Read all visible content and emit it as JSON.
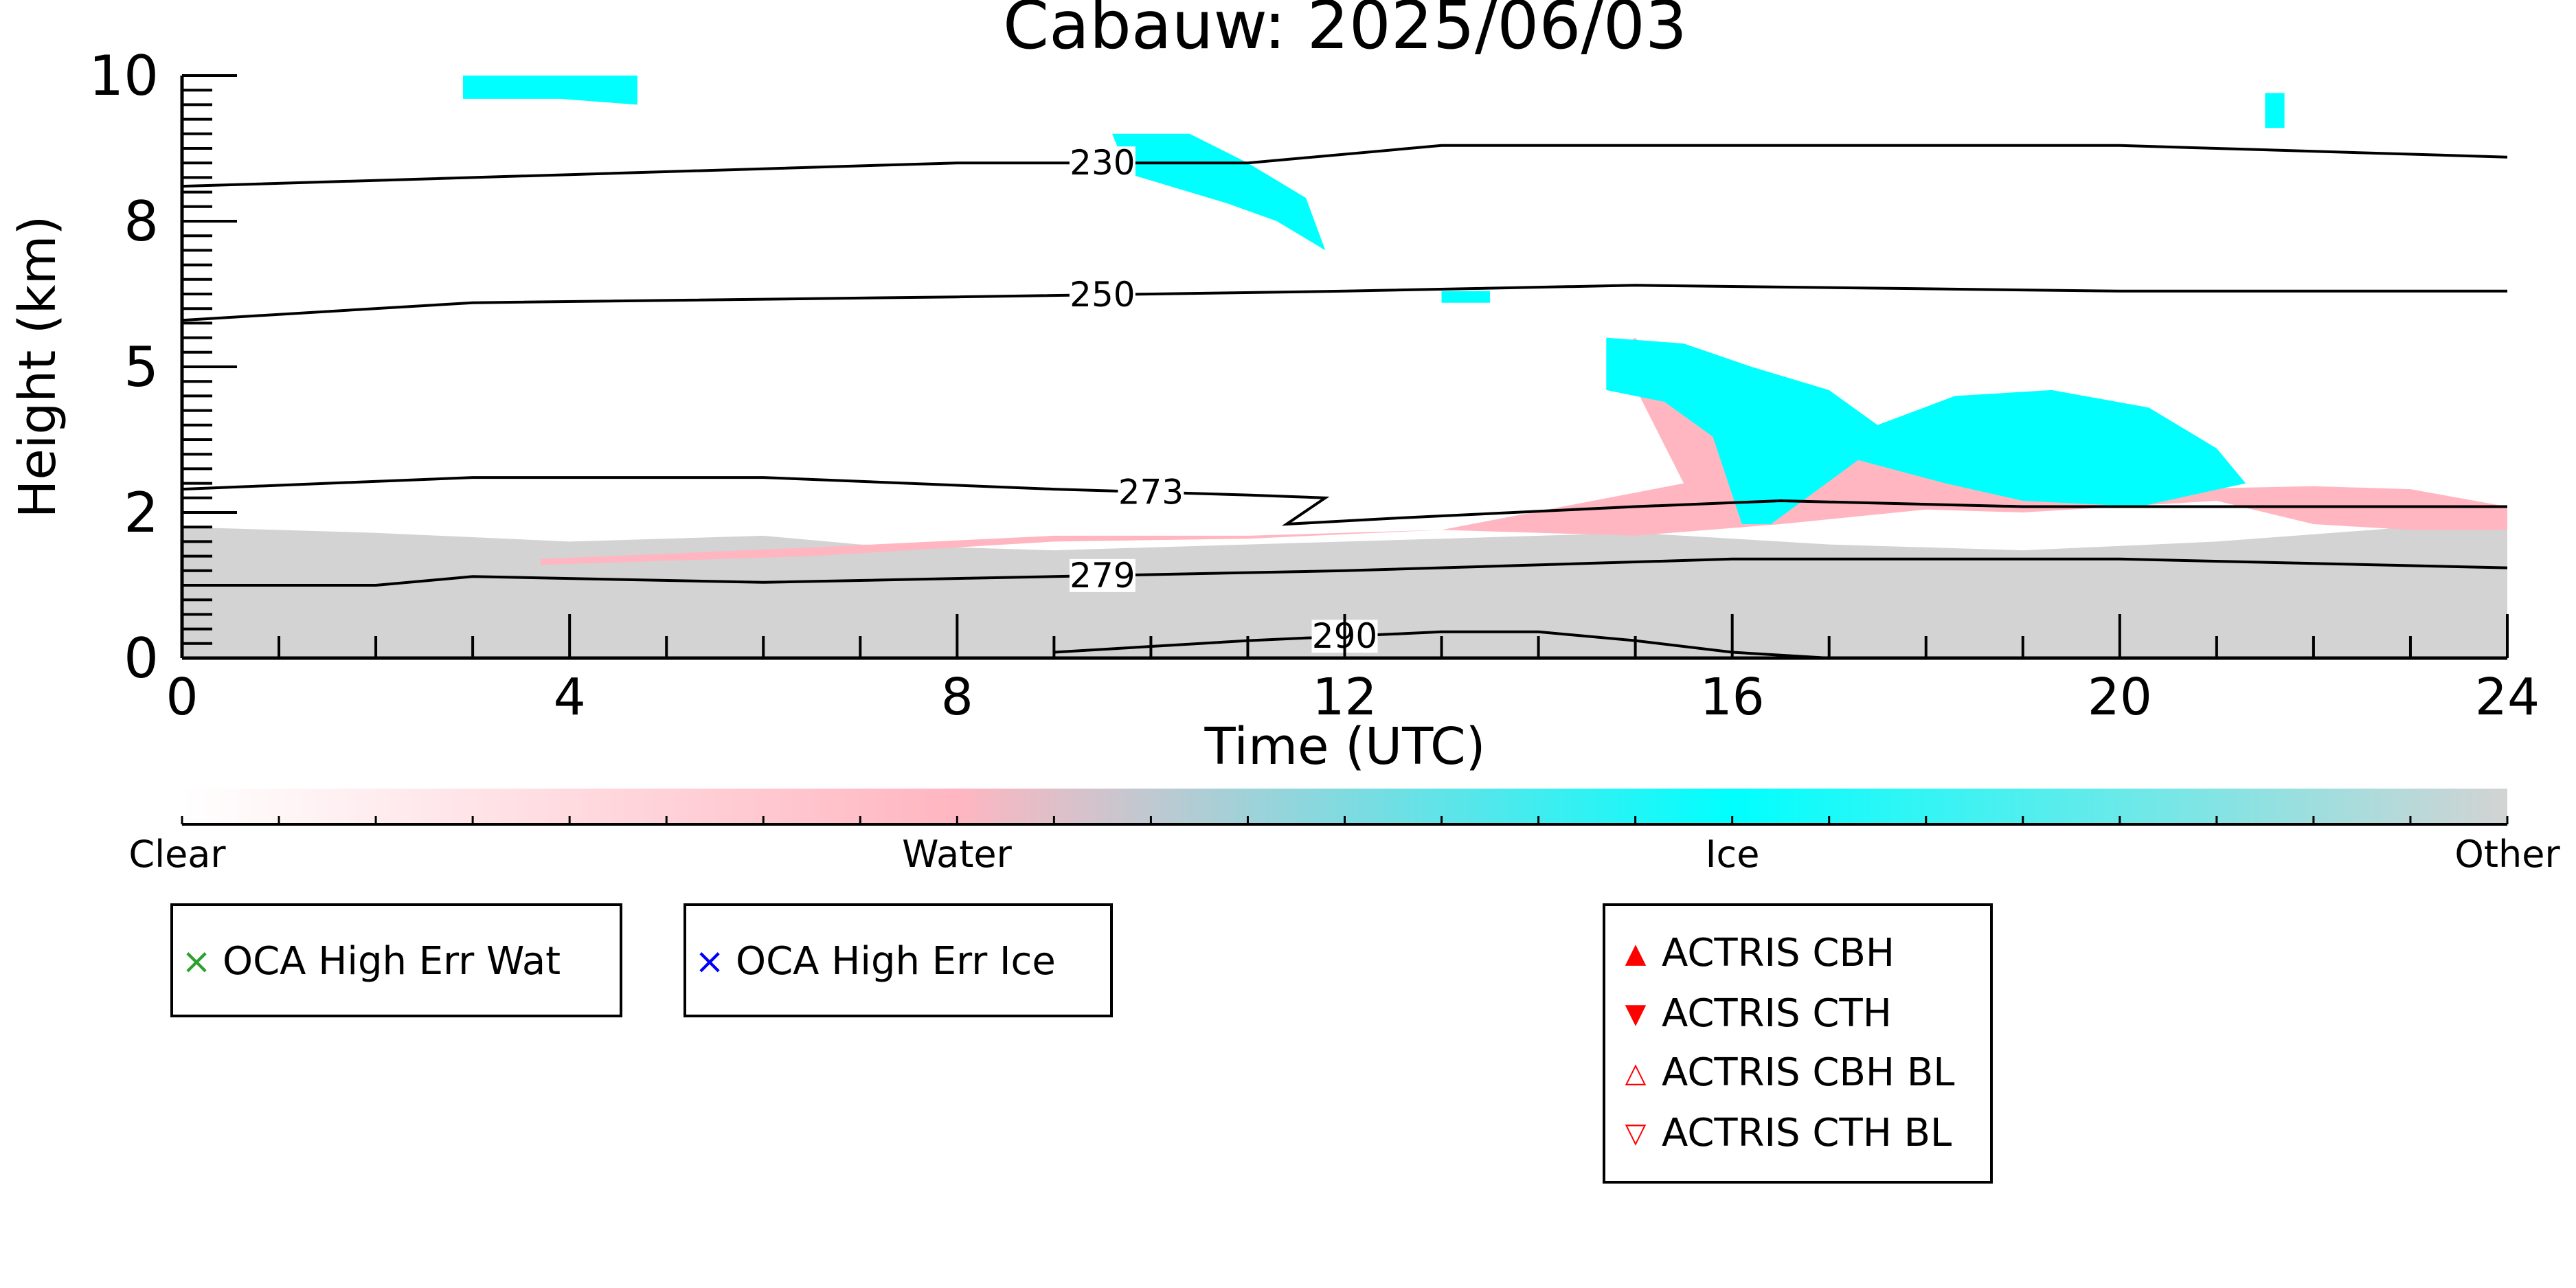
{
  "chart_data": {
    "type": "heatmap",
    "title": "Cabauw: 2025/06/03",
    "xlabel": "Time (UTC)",
    "ylabel": "Height (km)",
    "xlim": [
      0,
      24
    ],
    "ylim": [
      0,
      10
    ],
    "x_ticks": [
      "0",
      "4",
      "8",
      "12",
      "16",
      "20",
      "24"
    ],
    "y_ticks": [
      "0",
      "2",
      "5",
      "8",
      "10"
    ],
    "y_tick_values": [
      0,
      2.5,
      5,
      7.5,
      10
    ],
    "classes": [
      {
        "name": "Clear",
        "color": "#ffffff"
      },
      {
        "name": "Water",
        "color": "#ffb6c1"
      },
      {
        "name": "Ice",
        "color": "#00ffff"
      },
      {
        "name": "Other",
        "color": "#d3d3d3"
      }
    ],
    "regions": [
      {
        "class": "Other",
        "points": [
          [
            0,
            2.25
          ],
          [
            2,
            2.15
          ],
          [
            4,
            2.0
          ],
          [
            6,
            2.1
          ],
          [
            7,
            1.95
          ],
          [
            9,
            1.85
          ],
          [
            11,
            1.95
          ],
          [
            13,
            2.05
          ],
          [
            15,
            2.15
          ],
          [
            17,
            1.95
          ],
          [
            19,
            1.85
          ],
          [
            21,
            2.0
          ],
          [
            23,
            2.25
          ],
          [
            24,
            2.45
          ],
          [
            24,
            0
          ],
          [
            0,
            0
          ]
        ]
      },
      {
        "name": "low-water",
        "class": "Water",
        "points": [
          [
            3.7,
            1.6
          ],
          [
            6.5,
            1.75
          ],
          [
            9,
            2.0
          ],
          [
            11,
            2.05
          ],
          [
            13,
            2.2
          ],
          [
            15,
            2.1
          ],
          [
            16.5,
            2.3
          ],
          [
            18,
            2.55
          ],
          [
            19,
            2.5
          ],
          [
            21,
            2.7
          ],
          [
            22,
            2.3
          ],
          [
            23,
            2.2
          ],
          [
            24,
            2.2
          ],
          [
            24,
            2.6
          ],
          [
            23,
            2.9
          ],
          [
            22,
            2.95
          ],
          [
            20.5,
            2.9
          ],
          [
            19,
            3.2
          ],
          [
            17,
            3.5
          ],
          [
            15.5,
            4.6
          ],
          [
            15,
            5.5
          ],
          [
            14.8,
            5.3
          ],
          [
            15.5,
            3.0
          ],
          [
            13,
            2.2
          ],
          [
            11,
            2.1
          ],
          [
            9,
            2.1
          ],
          [
            6.5,
            1.9
          ],
          [
            3.7,
            1.7
          ]
        ]
      },
      {
        "name": "cirrus-fall",
        "class": "Ice",
        "points": [
          [
            14.7,
            5.5
          ],
          [
            15.5,
            5.4
          ],
          [
            16.2,
            5.0
          ],
          [
            17,
            4.6
          ],
          [
            17.5,
            4.0
          ],
          [
            18.3,
            4.5
          ],
          [
            19.3,
            4.6
          ],
          [
            20.3,
            4.3
          ],
          [
            21,
            3.6
          ],
          [
            21.3,
            3.0
          ],
          [
            20.2,
            2.6
          ],
          [
            19,
            2.7
          ],
          [
            18.2,
            3.0
          ],
          [
            17.3,
            3.4
          ],
          [
            16.4,
            2.3
          ],
          [
            16.1,
            2.3
          ],
          [
            15.8,
            3.8
          ],
          [
            15.3,
            4.4
          ],
          [
            14.7,
            4.6
          ]
        ]
      },
      {
        "name": "cirrus-high",
        "class": "Ice",
        "points": [
          [
            9.6,
            9.0
          ],
          [
            10.4,
            9.0
          ],
          [
            11.0,
            8.5
          ],
          [
            11.6,
            7.9
          ],
          [
            11.8,
            7.0
          ],
          [
            11.3,
            7.5
          ],
          [
            10.8,
            7.8
          ],
          [
            10.4,
            8.0
          ],
          [
            9.8,
            8.3
          ],
          [
            9.7,
            8.6
          ]
        ]
      },
      {
        "name": "cirrus-top",
        "class": "Ice",
        "points": [
          [
            2.9,
            10.0
          ],
          [
            4.7,
            10.0
          ],
          [
            4.7,
            9.5
          ],
          [
            3.9,
            9.6
          ],
          [
            2.9,
            9.6
          ]
        ]
      },
      {
        "name": "cirrus-patch",
        "class": "Ice",
        "points": [
          [
            13.0,
            6.3
          ],
          [
            13.5,
            6.3
          ],
          [
            13.5,
            6.1
          ],
          [
            13.0,
            6.1
          ]
        ]
      },
      {
        "name": "cirrus-small",
        "class": "Ice",
        "points": [
          [
            21.5,
            9.7
          ],
          [
            21.7,
            9.7
          ],
          [
            21.7,
            9.1
          ],
          [
            21.5,
            9.1
          ]
        ]
      }
    ],
    "contours": [
      {
        "label": "230",
        "label_x": 9.5,
        "points": [
          [
            0,
            8.1
          ],
          [
            4,
            8.3
          ],
          [
            8,
            8.5
          ],
          [
            11,
            8.5
          ],
          [
            13,
            8.8
          ],
          [
            16,
            8.8
          ],
          [
            20,
            8.8
          ],
          [
            24,
            8.6
          ]
        ]
      },
      {
        "label": "250",
        "label_x": 9.5,
        "points": [
          [
            0,
            5.8
          ],
          [
            3,
            6.1
          ],
          [
            8,
            6.2
          ],
          [
            12,
            6.3
          ],
          [
            15,
            6.4
          ],
          [
            20,
            6.3
          ],
          [
            24,
            6.3
          ]
        ]
      },
      {
        "label": "273",
        "label_x": 10.0,
        "points": [
          [
            0,
            2.9
          ],
          [
            3,
            3.1
          ],
          [
            6,
            3.1
          ],
          [
            9,
            2.9
          ],
          [
            11,
            2.8
          ],
          [
            11.8,
            2.75
          ],
          [
            11.4,
            2.3
          ],
          [
            12.5,
            2.4
          ],
          [
            15,
            2.6
          ],
          [
            16.5,
            2.7
          ],
          [
            19,
            2.6
          ],
          [
            24,
            2.6
          ]
        ]
      },
      {
        "name": "279",
        "label": "279",
        "label_x": 9.5,
        "points": [
          [
            0,
            1.25
          ],
          [
            2,
            1.25
          ],
          [
            3,
            1.4
          ],
          [
            6,
            1.3
          ],
          [
            9,
            1.4
          ],
          [
            12,
            1.5
          ],
          [
            16,
            1.7
          ],
          [
            20,
            1.7
          ],
          [
            24,
            1.55
          ]
        ]
      },
      {
        "name": "290",
        "label": "290",
        "label_x": 12.0,
        "points": [
          [
            9,
            0.1
          ],
          [
            11,
            0.3
          ],
          [
            13,
            0.45
          ],
          [
            14,
            0.45
          ],
          [
            15,
            0.3
          ],
          [
            16,
            0.1
          ],
          [
            17,
            0.0
          ]
        ]
      }
    ]
  },
  "colorbar": {
    "labels": [
      "Clear",
      "Water",
      "Ice",
      "Other"
    ]
  },
  "legends": {
    "oca_water": {
      "label": "OCA High Err Wat",
      "marker": "×",
      "color": "#2ca02c"
    },
    "oca_ice": {
      "label": "OCA High Err Ice",
      "marker": "×",
      "color": "#0000ff"
    },
    "actris": [
      {
        "label": "ACTRIS CBH",
        "marker": "▲",
        "color": "#ff0000"
      },
      {
        "label": "ACTRIS CTH",
        "marker": "▼",
        "color": "#ff0000"
      },
      {
        "label": "ACTRIS CBH BL",
        "marker": "△",
        "color": "#ff0000"
      },
      {
        "label": "ACTRIS CTH BL",
        "marker": "▽",
        "color": "#ff0000"
      }
    ]
  }
}
